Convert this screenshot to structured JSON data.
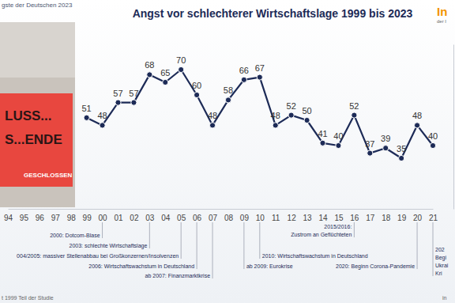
{
  "page": {
    "header": "gste der Deutschen 2023",
    "logo": "In",
    "logo_sub": "der I",
    "footer": "t 1999 Teil der Studie",
    "footer_right": "in",
    "photo_texts": [
      "LUSS...",
      "S...ENDE",
      "GESCHLOSSEN"
    ]
  },
  "chart_data": {
    "type": "line",
    "title": "Angst vor schlechterer Wirtschaftslage 1999 bis 2023",
    "categories": [
      "94",
      "95",
      "96",
      "97",
      "98",
      "99",
      "00",
      "01",
      "02",
      "03",
      "04",
      "05",
      "06",
      "07",
      "08",
      "09",
      "10",
      "11",
      "12",
      "13",
      "14",
      "15",
      "16",
      "17",
      "18",
      "19",
      "20",
      "21"
    ],
    "values": [
      null,
      null,
      null,
      null,
      null,
      51,
      48,
      57,
      57,
      68,
      65,
      70,
      60,
      48,
      58,
      66,
      67,
      48,
      52,
      50,
      41,
      40,
      52,
      37,
      39,
      35,
      48,
      40
    ],
    "color": "#1d2b57",
    "marker": "circle",
    "data_labels": true,
    "tick_labels": "x",
    "grid": false,
    "ylim": [
      15,
      80
    ],
    "yticks": [],
    "annotations": [
      {
        "x": "00",
        "text": [
          "2000: Dotcom-Blase"
        ]
      },
      {
        "x": "03",
        "text": [
          "2003: schlechte Wirtschaftslage"
        ]
      },
      {
        "x": "05",
        "text": [
          "004/2005: massiver Stellenabbau bei Großkonzernen/Insolvenzen"
        ]
      },
      {
        "x": "06",
        "text": [
          "2006: Wirtschaftswachstum in Deutschland"
        ]
      },
      {
        "x": "07",
        "text": [
          "ab 2007: Finanzmarktkrise"
        ]
      },
      {
        "x": "09",
        "text": [
          "ab 2009: Eurokrise"
        ]
      },
      {
        "x": "10",
        "text": [
          "2010: Wirtschaftswachstum in Deutschland"
        ]
      },
      {
        "x": "16",
        "text": [
          "2015/2016:",
          "Zustrom an Geflüchteten"
        ]
      },
      {
        "x": "20",
        "text": [
          "2020: Beginn Corona-Pandemie"
        ]
      },
      {
        "x": "21",
        "text": [
          "202",
          "Begi",
          "Ukrai",
          "Kri"
        ]
      }
    ]
  }
}
